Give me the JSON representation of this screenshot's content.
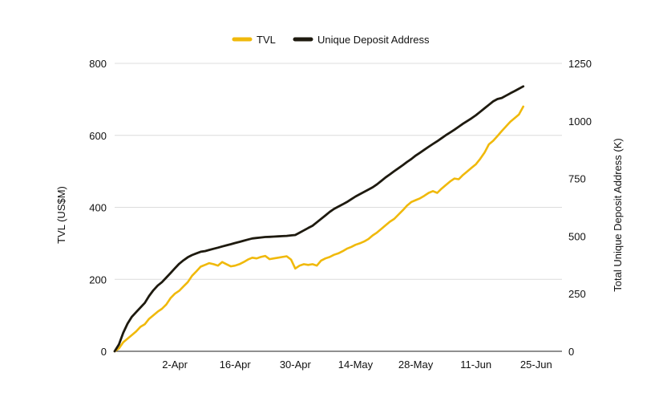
{
  "chart_data": {
    "type": "line",
    "title": "",
    "legend": {
      "position": "top-center"
    },
    "grid": true,
    "x": {
      "range": [
        "19-Mar",
        "1-Jul"
      ],
      "ticks": [
        "2-Apr",
        "16-Apr",
        "30-Apr",
        "14-May",
        "28-May",
        "11-Jun",
        "25-Jun"
      ],
      "tick_days": [
        14,
        28,
        42,
        56,
        70,
        84,
        98
      ]
    },
    "y_left": {
      "label": "TVL (US$M)",
      "range": [
        0,
        800
      ],
      "ticks": [
        "0",
        "200",
        "400",
        "600",
        "800"
      ]
    },
    "y_right": {
      "label": "Total Unique Deposit Address (K)",
      "range": [
        0,
        1250
      ],
      "ticks": [
        "0",
        "250",
        "500",
        "750",
        "1000",
        "1250"
      ]
    },
    "series": [
      {
        "name": "TVL",
        "axis": "left",
        "color": "#f0b90b",
        "points": [
          [
            0,
            0
          ],
          [
            1,
            8
          ],
          [
            2,
            25
          ],
          [
            3,
            35
          ],
          [
            4,
            45
          ],
          [
            5,
            55
          ],
          [
            6,
            68
          ],
          [
            7,
            75
          ],
          [
            8,
            90
          ],
          [
            9,
            100
          ],
          [
            10,
            110
          ],
          [
            11,
            118
          ],
          [
            12,
            130
          ],
          [
            13,
            148
          ],
          [
            14,
            160
          ],
          [
            15,
            168
          ],
          [
            16,
            180
          ],
          [
            17,
            192
          ],
          [
            18,
            210
          ],
          [
            19,
            222
          ],
          [
            20,
            235
          ],
          [
            21,
            240
          ],
          [
            22,
            245
          ],
          [
            23,
            242
          ],
          [
            24,
            238
          ],
          [
            25,
            248
          ],
          [
            26,
            242
          ],
          [
            27,
            236
          ],
          [
            28,
            238
          ],
          [
            29,
            242
          ],
          [
            30,
            248
          ],
          [
            31,
            255
          ],
          [
            32,
            260
          ],
          [
            33,
            258
          ],
          [
            34,
            262
          ],
          [
            35,
            265
          ],
          [
            36,
            256
          ],
          [
            37,
            258
          ],
          [
            38,
            260
          ],
          [
            39,
            262
          ],
          [
            40,
            264
          ],
          [
            41,
            255
          ],
          [
            42,
            230
          ],
          [
            43,
            238
          ],
          [
            44,
            242
          ],
          [
            45,
            240
          ],
          [
            46,
            242
          ],
          [
            47,
            238
          ],
          [
            48,
            252
          ],
          [
            49,
            258
          ],
          [
            50,
            262
          ],
          [
            51,
            268
          ],
          [
            52,
            272
          ],
          [
            53,
            278
          ],
          [
            54,
            285
          ],
          [
            55,
            290
          ],
          [
            56,
            296
          ],
          [
            57,
            300
          ],
          [
            58,
            305
          ],
          [
            59,
            312
          ],
          [
            60,
            322
          ],
          [
            61,
            330
          ],
          [
            62,
            340
          ],
          [
            63,
            350
          ],
          [
            64,
            360
          ],
          [
            65,
            368
          ],
          [
            66,
            380
          ],
          [
            67,
            392
          ],
          [
            68,
            405
          ],
          [
            69,
            415
          ],
          [
            70,
            420
          ],
          [
            71,
            425
          ],
          [
            72,
            432
          ],
          [
            73,
            440
          ],
          [
            74,
            445
          ],
          [
            75,
            440
          ],
          [
            76,
            452
          ],
          [
            77,
            462
          ],
          [
            78,
            472
          ],
          [
            79,
            480
          ],
          [
            80,
            478
          ],
          [
            81,
            490
          ],
          [
            82,
            500
          ],
          [
            83,
            510
          ],
          [
            84,
            520
          ],
          [
            85,
            535
          ],
          [
            86,
            552
          ],
          [
            87,
            575
          ],
          [
            88,
            585
          ],
          [
            89,
            598
          ],
          [
            90,
            612
          ],
          [
            91,
            625
          ],
          [
            92,
            638
          ],
          [
            93,
            648
          ],
          [
            94,
            658
          ],
          [
            95,
            680
          ]
        ]
      },
      {
        "name": "Unique Deposit Address",
        "axis": "right",
        "color": "#1e1a0f",
        "points": [
          [
            0,
            0
          ],
          [
            1,
            30
          ],
          [
            2,
            80
          ],
          [
            3,
            120
          ],
          [
            4,
            150
          ],
          [
            5,
            170
          ],
          [
            6,
            190
          ],
          [
            7,
            210
          ],
          [
            8,
            240
          ],
          [
            9,
            265
          ],
          [
            10,
            285
          ],
          [
            11,
            300
          ],
          [
            12,
            320
          ],
          [
            13,
            340
          ],
          [
            14,
            360
          ],
          [
            15,
            380
          ],
          [
            16,
            395
          ],
          [
            17,
            408
          ],
          [
            18,
            418
          ],
          [
            19,
            425
          ],
          [
            20,
            432
          ],
          [
            21,
            435
          ],
          [
            22,
            440
          ],
          [
            23,
            445
          ],
          [
            24,
            450
          ],
          [
            25,
            455
          ],
          [
            26,
            460
          ],
          [
            27,
            465
          ],
          [
            28,
            470
          ],
          [
            29,
            475
          ],
          [
            30,
            480
          ],
          [
            31,
            485
          ],
          [
            32,
            490
          ],
          [
            33,
            492
          ],
          [
            34,
            494
          ],
          [
            35,
            496
          ],
          [
            36,
            497
          ],
          [
            37,
            498
          ],
          [
            38,
            499
          ],
          [
            39,
            500
          ],
          [
            40,
            501
          ],
          [
            41,
            503
          ],
          [
            42,
            505
          ],
          [
            43,
            515
          ],
          [
            44,
            525
          ],
          [
            45,
            535
          ],
          [
            46,
            545
          ],
          [
            47,
            560
          ],
          [
            48,
            575
          ],
          [
            49,
            590
          ],
          [
            50,
            605
          ],
          [
            51,
            618
          ],
          [
            52,
            628
          ],
          [
            53,
            638
          ],
          [
            54,
            648
          ],
          [
            55,
            660
          ],
          [
            56,
            672
          ],
          [
            57,
            682
          ],
          [
            58,
            692
          ],
          [
            59,
            702
          ],
          [
            60,
            712
          ],
          [
            61,
            725
          ],
          [
            62,
            740
          ],
          [
            63,
            755
          ],
          [
            64,
            768
          ],
          [
            65,
            782
          ],
          [
            66,
            795
          ],
          [
            67,
            808
          ],
          [
            68,
            822
          ],
          [
            69,
            835
          ],
          [
            70,
            850
          ],
          [
            71,
            862
          ],
          [
            72,
            875
          ],
          [
            73,
            888
          ],
          [
            74,
            900
          ],
          [
            75,
            912
          ],
          [
            76,
            925
          ],
          [
            77,
            938
          ],
          [
            78,
            950
          ],
          [
            79,
            962
          ],
          [
            80,
            975
          ],
          [
            81,
            988
          ],
          [
            82,
            1000
          ],
          [
            83,
            1012
          ],
          [
            84,
            1025
          ],
          [
            85,
            1040
          ],
          [
            86,
            1055
          ],
          [
            87,
            1070
          ],
          [
            88,
            1085
          ],
          [
            89,
            1095
          ],
          [
            90,
            1100
          ],
          [
            91,
            1110
          ],
          [
            92,
            1120
          ],
          [
            93,
            1130
          ],
          [
            94,
            1140
          ],
          [
            95,
            1150
          ]
        ]
      }
    ]
  }
}
